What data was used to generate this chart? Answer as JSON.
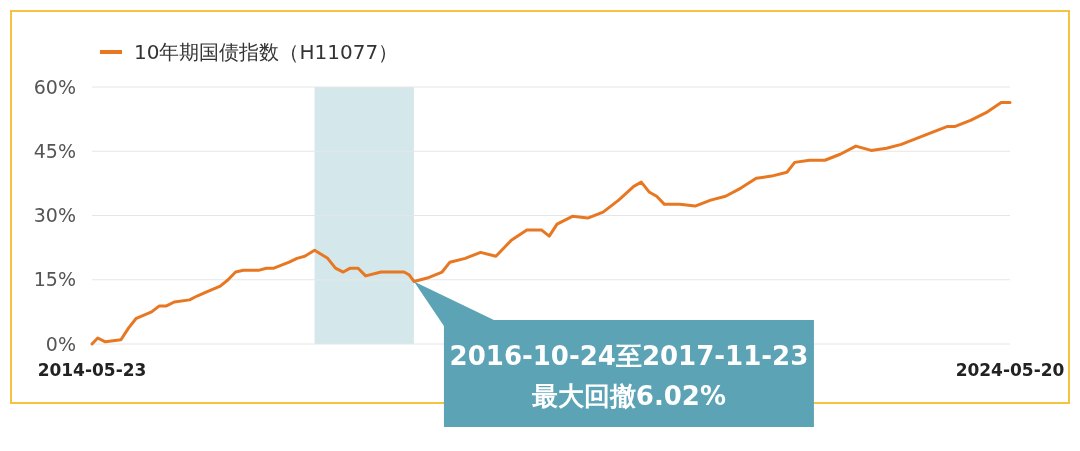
{
  "chart_data": {
    "type": "line",
    "legend": "top left",
    "grid": "y",
    "xlim": [
      "2014-05-23",
      "2024-05-20"
    ],
    "xticks": [
      "2014-05-23",
      "2024-05-20"
    ],
    "ylim": [
      0,
      60
    ],
    "yticks": [
      {
        "value": 0,
        "label": "0%"
      },
      {
        "value": 15,
        "label": "15%"
      },
      {
        "value": 30,
        "label": "30%"
      },
      {
        "value": 45,
        "label": "45%"
      },
      {
        "value": 60,
        "label": "60%"
      }
    ],
    "bands": [
      {
        "axis": "x",
        "from": "2016-10-24",
        "to": "2017-11-23",
        "color": "#d4e8ec"
      }
    ],
    "annotations": [
      {
        "text": "2016-10-24至2017-11-23\n最大回撤6.02%",
        "x": "2017-11-23",
        "y": 14.6
      }
    ],
    "series": [
      {
        "name": "10年期国债指数（H11077）",
        "color": "#e87722",
        "x": [
          "2014-05-23",
          "2014-06",
          "2014-07",
          "2014-09",
          "2014-10",
          "2014-11",
          "2015-01",
          "2015-02",
          "2015-03",
          "2015-04",
          "2015-06",
          "2015-07",
          "2015-08",
          "2015-10",
          "2015-11",
          "2015-12",
          "2016-01",
          "2016-03",
          "2016-04",
          "2016-05",
          "2016-07",
          "2016-08",
          "2016-09",
          "2016-10-24",
          "2016-12",
          "2017-01",
          "2017-02",
          "2017-03",
          "2017-04",
          "2017-05",
          "2017-07",
          "2017-08",
          "2017-10",
          "2017-11-05",
          "2017-11-23",
          "2018-01",
          "2018-03",
          "2018-04",
          "2018-06",
          "2018-08",
          "2018-10",
          "2018-12",
          "2019-02",
          "2019-04",
          "2019-05",
          "2019-06",
          "2019-08",
          "2019-10",
          "2019-12",
          "2020-02",
          "2020-04",
          "2020-05",
          "2020-06",
          "2020-07",
          "2020-08",
          "2020-10",
          "2020-12",
          "2021-02",
          "2021-04",
          "2021-06",
          "2021-08",
          "2021-10",
          "2021-12",
          "2022-01",
          "2022-03",
          "2022-05",
          "2022-07",
          "2022-09",
          "2022-11",
          "2023-01",
          "2023-03",
          "2023-05",
          "2023-07",
          "2023-09",
          "2023-10",
          "2023-12",
          "2024-02",
          "2024-04",
          "2024-05-20"
        ],
        "values": [
          0,
          1.4,
          0.5,
          1,
          3.7,
          6,
          7.5,
          8.9,
          8.9,
          9.8,
          10.3,
          11.2,
          12,
          13.5,
          15,
          16.8,
          17.2,
          17.2,
          17.7,
          17.7,
          19.1,
          20,
          20.5,
          21.9,
          20,
          17.7,
          16.8,
          17.7,
          17.7,
          15.9,
          16.8,
          16.8,
          16.8,
          16.1,
          14.6,
          15.4,
          16.8,
          19.1,
          20,
          21.4,
          20.5,
          24.2,
          26.6,
          26.6,
          25.2,
          28,
          29.8,
          29.4,
          30.8,
          33.6,
          36.8,
          37.8,
          35.5,
          34.5,
          32.6,
          32.6,
          32.2,
          33.6,
          34.5,
          36.4,
          38.7,
          39.2,
          40.1,
          42.4,
          42.9,
          42.9,
          44.3,
          46.2,
          45.2,
          45.7,
          46.6,
          48,
          49.4,
          50.8,
          50.8,
          52.2,
          54,
          56.4,
          56.4
        ]
      }
    ]
  }
}
